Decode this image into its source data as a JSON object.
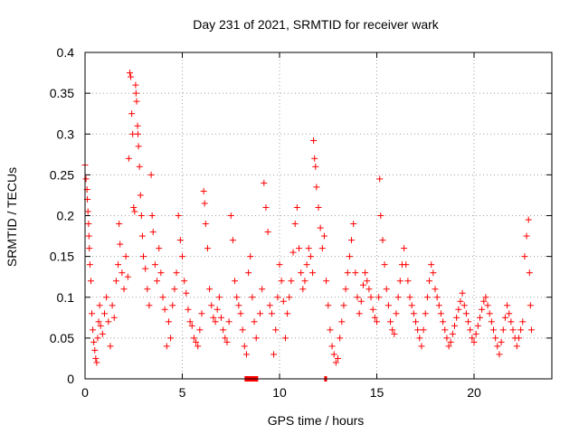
{
  "chart_data": {
    "type": "scatter",
    "title": "Day 231 of 2021, SRMTID for receiver wark",
    "xlabel": "GPS time / hours",
    "ylabel": "SRMTID / TECUs",
    "xlim": [
      0,
      24
    ],
    "ylim": [
      0,
      0.4
    ],
    "x_ticks": [
      0,
      5,
      10,
      15,
      20
    ],
    "y_ticks": [
      0,
      0.05,
      0.1,
      0.15,
      0.2,
      0.25,
      0.3,
      0.35,
      0.4
    ],
    "x_tick_labels": [
      "0",
      "5",
      "10",
      "15",
      "20"
    ],
    "y_tick_labels": [
      "0",
      "0.05",
      "0.1",
      "0.15",
      "0.2",
      "0.25",
      "0.3",
      "0.35",
      "0.4"
    ],
    "grid": true,
    "marker": "+",
    "color": "#ff0000",
    "series": [
      {
        "name": "SRMTID",
        "points": [
          [
            0.0,
            0.262
          ],
          [
            0.05,
            0.245
          ],
          [
            0.1,
            0.232
          ],
          [
            0.12,
            0.22
          ],
          [
            0.15,
            0.205
          ],
          [
            0.18,
            0.19
          ],
          [
            0.2,
            0.175
          ],
          [
            0.22,
            0.16
          ],
          [
            0.25,
            0.14
          ],
          [
            0.3,
            0.12
          ],
          [
            0.35,
            0.08
          ],
          [
            0.4,
            0.06
          ],
          [
            0.45,
            0.045
          ],
          [
            0.5,
            0.035
          ],
          [
            0.55,
            0.025
          ],
          [
            0.6,
            0.02
          ],
          [
            0.65,
            0.05
          ],
          [
            0.7,
            0.07
          ],
          [
            0.75,
            0.09
          ],
          [
            0.8,
            0.065
          ],
          [
            0.9,
            0.055
          ],
          [
            1.0,
            0.08
          ],
          [
            1.1,
            0.1
          ],
          [
            1.2,
            0.07
          ],
          [
            1.3,
            0.04
          ],
          [
            1.4,
            0.09
          ],
          [
            1.5,
            0.075
          ],
          [
            1.6,
            0.12
          ],
          [
            1.7,
            0.14
          ],
          [
            1.75,
            0.19
          ],
          [
            1.8,
            0.165
          ],
          [
            1.9,
            0.13
          ],
          [
            2.0,
            0.11
          ],
          [
            2.1,
            0.15
          ],
          [
            2.2,
            0.125
          ],
          [
            2.25,
            0.27
          ],
          [
            2.3,
            0.375
          ],
          [
            2.35,
            0.37
          ],
          [
            2.4,
            0.325
          ],
          [
            2.45,
            0.3
          ],
          [
            2.5,
            0.21
          ],
          [
            2.55,
            0.205
          ],
          [
            2.6,
            0.36
          ],
          [
            2.62,
            0.35
          ],
          [
            2.65,
            0.34
          ],
          [
            2.7,
            0.31
          ],
          [
            2.72,
            0.3
          ],
          [
            2.75,
            0.285
          ],
          [
            2.8,
            0.26
          ],
          [
            2.85,
            0.225
          ],
          [
            2.9,
            0.2
          ],
          [
            2.95,
            0.175
          ],
          [
            3.0,
            0.15
          ],
          [
            3.1,
            0.135
          ],
          [
            3.2,
            0.11
          ],
          [
            3.3,
            0.09
          ],
          [
            3.4,
            0.25
          ],
          [
            3.45,
            0.2
          ],
          [
            3.5,
            0.18
          ],
          [
            3.6,
            0.14
          ],
          [
            3.7,
            0.12
          ],
          [
            3.8,
            0.16
          ],
          [
            3.9,
            0.13
          ],
          [
            4.0,
            0.1
          ],
          [
            4.1,
            0.085
          ],
          [
            4.2,
            0.04
          ],
          [
            4.3,
            0.07
          ],
          [
            4.4,
            0.05
          ],
          [
            4.5,
            0.09
          ],
          [
            4.6,
            0.11
          ],
          [
            4.7,
            0.13
          ],
          [
            4.8,
            0.2
          ],
          [
            4.9,
            0.17
          ],
          [
            5.0,
            0.15
          ],
          [
            5.1,
            0.12
          ],
          [
            5.2,
            0.105
          ],
          [
            5.3,
            0.085
          ],
          [
            5.4,
            0.07
          ],
          [
            5.5,
            0.065
          ],
          [
            5.6,
            0.05
          ],
          [
            5.7,
            0.045
          ],
          [
            5.8,
            0.04
          ],
          [
            5.9,
            0.06
          ],
          [
            6.0,
            0.08
          ],
          [
            6.1,
            0.23
          ],
          [
            6.15,
            0.215
          ],
          [
            6.2,
            0.19
          ],
          [
            6.3,
            0.16
          ],
          [
            6.4,
            0.11
          ],
          [
            6.5,
            0.09
          ],
          [
            6.6,
            0.075
          ],
          [
            6.7,
            0.07
          ],
          [
            6.8,
            0.085
          ],
          [
            6.9,
            0.1
          ],
          [
            7.0,
            0.075
          ],
          [
            7.1,
            0.06
          ],
          [
            7.2,
            0.05
          ],
          [
            7.3,
            0.045
          ],
          [
            7.4,
            0.07
          ],
          [
            7.5,
            0.2
          ],
          [
            7.6,
            0.17
          ],
          [
            7.7,
            0.12
          ],
          [
            7.8,
            0.1
          ],
          [
            7.9,
            0.09
          ],
          [
            8.0,
            0.08
          ],
          [
            8.1,
            0.06
          ],
          [
            8.2,
            0.04
          ],
          [
            8.3,
            0.03
          ],
          [
            8.4,
            0.13
          ],
          [
            8.5,
            0.15
          ],
          [
            8.6,
            0.1
          ],
          [
            8.7,
            0.07
          ],
          [
            8.8,
            0.05
          ],
          [
            9.0,
            0.08
          ],
          [
            9.1,
            0.11
          ],
          [
            9.2,
            0.24
          ],
          [
            9.3,
            0.21
          ],
          [
            9.4,
            0.18
          ],
          [
            9.5,
            0.09
          ],
          [
            9.6,
            0.08
          ],
          [
            9.7,
            0.03
          ],
          [
            9.8,
            0.06
          ],
          [
            9.9,
            0.1
          ],
          [
            10.0,
            0.14
          ],
          [
            10.1,
            0.12
          ],
          [
            10.2,
            0.095
          ],
          [
            10.3,
            0.05
          ],
          [
            10.4,
            0.08
          ],
          [
            10.5,
            0.1
          ],
          [
            10.6,
            0.12
          ],
          [
            10.7,
            0.155
          ],
          [
            10.8,
            0.19
          ],
          [
            10.9,
            0.21
          ],
          [
            11.0,
            0.16
          ],
          [
            11.1,
            0.13
          ],
          [
            11.2,
            0.11
          ],
          [
            11.3,
            0.12
          ],
          [
            11.4,
            0.14
          ],
          [
            11.5,
            0.16
          ],
          [
            11.6,
            0.15
          ],
          [
            11.7,
            0.13
          ],
          [
            11.75,
            0.292
          ],
          [
            11.8,
            0.27
          ],
          [
            11.85,
            0.26
          ],
          [
            11.9,
            0.235
          ],
          [
            12.0,
            0.21
          ],
          [
            12.1,
            0.185
          ],
          [
            12.2,
            0.16
          ],
          [
            12.3,
            0.175
          ],
          [
            12.4,
            0.12
          ],
          [
            12.5,
            0.09
          ],
          [
            12.6,
            0.06
          ],
          [
            12.7,
            0.04
          ],
          [
            12.8,
            0.03
          ],
          [
            12.9,
            0.02
          ],
          [
            13.0,
            0.025
          ],
          [
            13.1,
            0.05
          ],
          [
            13.2,
            0.07
          ],
          [
            13.3,
            0.09
          ],
          [
            13.4,
            0.11
          ],
          [
            13.5,
            0.13
          ],
          [
            13.6,
            0.15
          ],
          [
            13.7,
            0.17
          ],
          [
            13.8,
            0.19
          ],
          [
            13.9,
            0.13
          ],
          [
            14.0,
            0.1
          ],
          [
            14.1,
            0.08
          ],
          [
            14.2,
            0.095
          ],
          [
            14.3,
            0.115
          ],
          [
            14.4,
            0.13
          ],
          [
            14.5,
            0.12
          ],
          [
            14.6,
            0.11
          ],
          [
            14.7,
            0.1
          ],
          [
            14.8,
            0.085
          ],
          [
            14.9,
            0.075
          ],
          [
            15.0,
            0.07
          ],
          [
            15.1,
            0.1
          ],
          [
            15.15,
            0.245
          ],
          [
            15.2,
            0.2
          ],
          [
            15.3,
            0.17
          ],
          [
            15.4,
            0.14
          ],
          [
            15.5,
            0.11
          ],
          [
            15.6,
            0.09
          ],
          [
            15.7,
            0.07
          ],
          [
            15.8,
            0.06
          ],
          [
            15.9,
            0.055
          ],
          [
            16.0,
            0.08
          ],
          [
            16.1,
            0.1
          ],
          [
            16.2,
            0.12
          ],
          [
            16.3,
            0.14
          ],
          [
            16.4,
            0.16
          ],
          [
            16.5,
            0.14
          ],
          [
            16.6,
            0.12
          ],
          [
            16.7,
            0.1
          ],
          [
            16.8,
            0.09
          ],
          [
            16.9,
            0.08
          ],
          [
            17.0,
            0.07
          ],
          [
            17.1,
            0.06
          ],
          [
            17.2,
            0.05
          ],
          [
            17.3,
            0.04
          ],
          [
            17.4,
            0.06
          ],
          [
            17.5,
            0.08
          ],
          [
            17.6,
            0.1
          ],
          [
            17.7,
            0.12
          ],
          [
            17.8,
            0.14
          ],
          [
            17.9,
            0.13
          ],
          [
            18.0,
            0.11
          ],
          [
            18.1,
            0.1
          ],
          [
            18.2,
            0.09
          ],
          [
            18.3,
            0.08
          ],
          [
            18.4,
            0.07
          ],
          [
            18.5,
            0.06
          ],
          [
            18.6,
            0.05
          ],
          [
            18.7,
            0.04
          ],
          [
            18.8,
            0.045
          ],
          [
            18.9,
            0.055
          ],
          [
            19.0,
            0.065
          ],
          [
            19.1,
            0.075
          ],
          [
            19.2,
            0.085
          ],
          [
            19.3,
            0.095
          ],
          [
            19.4,
            0.105
          ],
          [
            19.5,
            0.09
          ],
          [
            19.6,
            0.08
          ],
          [
            19.7,
            0.07
          ],
          [
            19.8,
            0.06
          ],
          [
            19.9,
            0.05
          ],
          [
            20.0,
            0.045
          ],
          [
            20.1,
            0.055
          ],
          [
            20.2,
            0.065
          ],
          [
            20.3,
            0.075
          ],
          [
            20.4,
            0.085
          ],
          [
            20.5,
            0.095
          ],
          [
            20.6,
            0.1
          ],
          [
            20.7,
            0.09
          ],
          [
            20.8,
            0.08
          ],
          [
            20.9,
            0.07
          ],
          [
            21.0,
            0.06
          ],
          [
            21.1,
            0.05
          ],
          [
            21.2,
            0.04
          ],
          [
            21.3,
            0.03
          ],
          [
            21.4,
            0.045
          ],
          [
            21.5,
            0.06
          ],
          [
            21.6,
            0.075
          ],
          [
            21.7,
            0.09
          ],
          [
            21.8,
            0.08
          ],
          [
            21.9,
            0.07
          ],
          [
            22.0,
            0.06
          ],
          [
            22.1,
            0.05
          ],
          [
            22.2,
            0.04
          ],
          [
            22.3,
            0.05
          ],
          [
            22.4,
            0.06
          ],
          [
            22.5,
            0.07
          ],
          [
            22.6,
            0.15
          ],
          [
            22.7,
            0.175
          ],
          [
            22.8,
            0.195
          ],
          [
            22.85,
            0.13
          ],
          [
            22.9,
            0.09
          ],
          [
            22.95,
            0.06
          ]
        ]
      }
    ],
    "gaps": [
      [
        8.2,
        8.9
      ],
      [
        12.3,
        12.4
      ]
    ]
  }
}
